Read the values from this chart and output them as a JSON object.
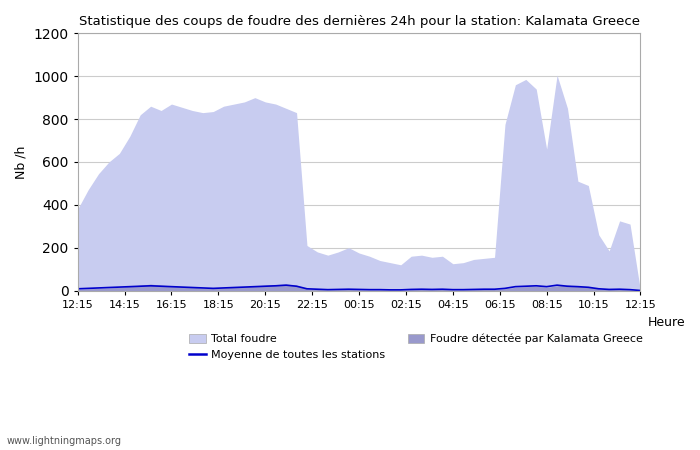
{
  "title": "Statistique des coups de foudre des dernières 24h pour la station: Kalamata Greece",
  "ylabel": "Nb /h",
  "xlabel_right": "Heure",
  "watermark": "www.lightningmaps.org",
  "ylim": [
    0,
    1200
  ],
  "yticks": [
    0,
    200,
    400,
    600,
    800,
    1000,
    1200
  ],
  "xtick_labels": [
    "12:15",
    "14:15",
    "16:15",
    "18:15",
    "20:15",
    "22:15",
    "00:15",
    "02:15",
    "04:15",
    "06:15",
    "08:15",
    "10:15",
    "12:15"
  ],
  "total_foudre_color": "#c8ccf0",
  "kalamata_color": "#9999cc",
  "moyenne_color": "#0000cc",
  "background_color": "#ffffff",
  "grid_color": "#cccccc",
  "legend": {
    "total_foudre": "Total foudre",
    "moyenne": "Moyenne de toutes les stations",
    "kalamata": "Foudre détectée par Kalamata Greece"
  },
  "total_foudre": [
    380,
    470,
    545,
    600,
    640,
    720,
    820,
    860,
    840,
    870,
    855,
    840,
    830,
    835,
    860,
    870,
    880,
    900,
    880,
    870,
    850,
    830,
    210,
    180,
    165,
    180,
    200,
    175,
    160,
    140,
    130,
    120,
    160,
    165,
    155,
    160,
    125,
    130,
    145,
    150,
    155,
    775,
    960,
    985,
    940,
    660,
    1005,
    850,
    510,
    490,
    260,
    185,
    325,
    310,
    0
  ],
  "kalamata": [
    5,
    8,
    10,
    12,
    15,
    20,
    25,
    30,
    25,
    22,
    18,
    15,
    12,
    10,
    12,
    15,
    18,
    22,
    25,
    28,
    30,
    25,
    8,
    5,
    3,
    4,
    5,
    4,
    3,
    3,
    2,
    2,
    4,
    5,
    4,
    5,
    3,
    3,
    4,
    5,
    5,
    8,
    15,
    18,
    20,
    15,
    22,
    25,
    20,
    18,
    8,
    5,
    5,
    3,
    0
  ],
  "moyenne": [
    8,
    10,
    12,
    14,
    16,
    18,
    20,
    22,
    20,
    18,
    16,
    14,
    12,
    10,
    12,
    14,
    16,
    18,
    20,
    22,
    25,
    20,
    8,
    6,
    4,
    5,
    6,
    5,
    4,
    4,
    3,
    3,
    5,
    6,
    5,
    6,
    4,
    4,
    5,
    6,
    6,
    10,
    18,
    20,
    22,
    18,
    25,
    20,
    18,
    15,
    8,
    5,
    6,
    4,
    0
  ]
}
